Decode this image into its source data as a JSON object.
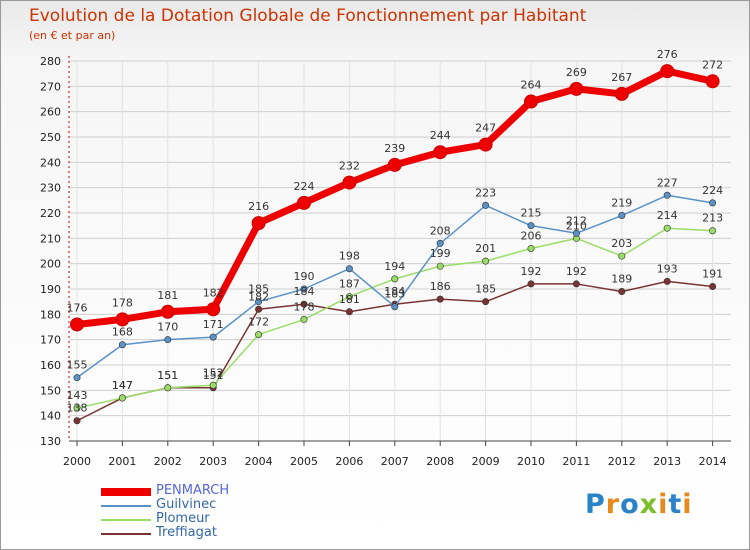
{
  "title": "Evolution de la Dotation Globale de Fonctionnement par Habitant",
  "subtitle": "(en € et par an)",
  "logo": {
    "letters": [
      "P",
      "r",
      "o",
      "x",
      "i",
      "t",
      "i"
    ],
    "colors": [
      "#2a83c9",
      "#e8891b",
      "#2a83c9",
      "#7bbf2a",
      "#e8891b",
      "#2a83c9",
      "#e8891b"
    ]
  },
  "chart_data": {
    "type": "line",
    "title": "Evolution de la Dotation Globale de Fonctionnement par Habitant",
    "subtitle": "(en € et par an)",
    "xlabel": "",
    "ylabel": "",
    "ylim": [
      130,
      280
    ],
    "yticks": [
      130,
      140,
      150,
      160,
      170,
      180,
      190,
      200,
      210,
      220,
      230,
      240,
      250,
      260,
      270,
      280
    ],
    "grid": true,
    "legend_position": "bottom-left",
    "x": [
      "2000",
      "2001",
      "2002",
      "2003",
      "2004",
      "2005",
      "2006",
      "2007",
      "2008",
      "2009",
      "2010",
      "2011",
      "2012",
      "2013",
      "2014"
    ],
    "series": [
      {
        "name": "PENMARCH",
        "color": "#ee0000",
        "values": [
          176,
          178,
          181,
          182,
          216,
          224,
          232,
          239,
          244,
          247,
          264,
          269,
          267,
          276,
          272
        ]
      },
      {
        "name": "Guilvinec",
        "color": "#5a92c8",
        "values": [
          155,
          168,
          170,
          171,
          185,
          190,
          198,
          183,
          208,
          223,
          215,
          212,
          219,
          227,
          224
        ]
      },
      {
        "name": "Plomeur",
        "color": "#99dd66",
        "values": [
          143,
          147,
          151,
          152,
          172,
          178,
          187,
          194,
          199,
          201,
          206,
          210,
          203,
          214,
          213
        ]
      },
      {
        "name": "Treffiagat",
        "color": "#7a3333",
        "values": [
          138,
          147,
          151,
          151,
          182,
          184,
          181,
          184,
          186,
          185,
          192,
          192,
          189,
          193,
          191
        ]
      }
    ]
  }
}
